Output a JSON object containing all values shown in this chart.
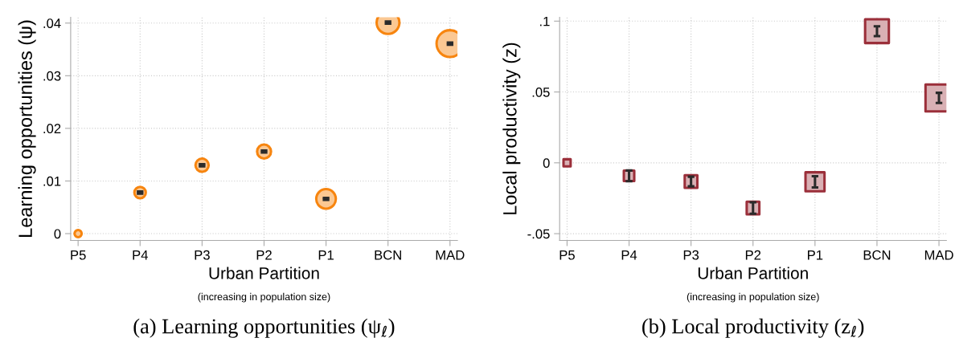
{
  "chart_data": [
    {
      "type": "bubble",
      "title": "(a) Learning opportunities (ψ$_{ℓ}$)",
      "xlabel": "Urban Partition",
      "ylabel": "Learning opportunities (ψ)",
      "annotations": [
        "(increasing in population size)"
      ],
      "categories": [
        "P5",
        "P4",
        "P3",
        "P2",
        "P1",
        "BCN",
        "MAD"
      ],
      "values": [
        0,
        0.0078,
        0.013,
        0.0156,
        0.0066,
        0.0401,
        0.0361
      ],
      "errors": [
        null,
        0.0002,
        0.0002,
        0.0002,
        0.0002,
        0.0002,
        0.0002
      ],
      "sizes": [
        0.07,
        0.18,
        0.24,
        0.27,
        0.53,
        0.72,
        1
      ],
      "color": "#f7850f",
      "marker": "circle",
      "ylim": [
        -0.0013,
        0.0411
      ],
      "yticks": [
        {
          "value": 0,
          "label": "0"
        },
        {
          "value": 0.01,
          "label": ".01"
        },
        {
          "value": 0.02,
          "label": ".02"
        },
        {
          "value": 0.03,
          "label": ".03"
        },
        {
          "value": 0.04,
          "label": ".04"
        }
      ],
      "grid": true
    },
    {
      "type": "bubble",
      "title": "(b) Local productivity (z$_{ℓ}$)",
      "xlabel": "Urban Partition",
      "ylabel": "Local productivity (z)",
      "annotations": [
        "(increasing in population size)"
      ],
      "categories": [
        "P5",
        "P4",
        "P3",
        "P2",
        "P1",
        "BCN",
        "MAD"
      ],
      "values": [
        0,
        -0.0092,
        -0.0132,
        -0.0319,
        -0.0134,
        0.0929,
        0.0458
      ],
      "errors": [
        null,
        0.0038,
        0.0034,
        0.004,
        0.004,
        0.0035,
        0.0036
      ],
      "sizes": [
        0.07,
        0.15,
        0.22,
        0.22,
        0.5,
        0.78,
        1
      ],
      "color": "#9b2f3a",
      "marker": "square",
      "ylim": [
        -0.0548,
        0.1027
      ],
      "yticks": [
        {
          "value": -0.05,
          "label": "-.05"
        },
        {
          "value": 0,
          "label": "0"
        },
        {
          "value": 0.05,
          "label": ".05"
        },
        {
          "value": 0.1,
          "label": ".1"
        }
      ],
      "grid": true
    }
  ]
}
